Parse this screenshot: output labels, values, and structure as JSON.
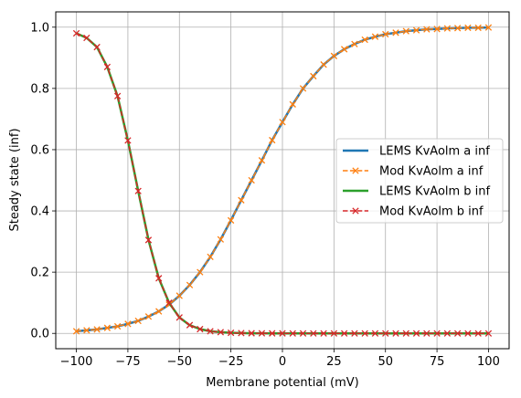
{
  "chart_data": {
    "type": "line",
    "xlabel": "Membrane potential (mV)",
    "ylabel": "Steady state (inf)",
    "xlim": [
      -110,
      110
    ],
    "ylim": [
      -0.05,
      1.05
    ],
    "xticks": [
      -100,
      -75,
      -50,
      -25,
      0,
      25,
      50,
      75,
      100
    ],
    "xtick_labels": [
      "−100",
      "−75",
      "−50",
      "−25",
      "0",
      "25",
      "50",
      "75",
      "100"
    ],
    "yticks": [
      0.0,
      0.2,
      0.4,
      0.6,
      0.8,
      1.0
    ],
    "ytick_labels": [
      "0.0",
      "0.2",
      "0.4",
      "0.6",
      "0.8",
      "1.0"
    ],
    "grid": true,
    "legend_position": "center-right",
    "x": [
      -100,
      -95,
      -90,
      -85,
      -80,
      -75,
      -70,
      -65,
      -60,
      -55,
      -50,
      -45,
      -40,
      -35,
      -30,
      -25,
      -20,
      -15,
      -10,
      -5,
      0,
      5,
      10,
      15,
      20,
      25,
      30,
      35,
      40,
      45,
      50,
      55,
      60,
      65,
      70,
      75,
      80,
      85,
      90,
      95,
      100
    ],
    "series": [
      {
        "name": "LEMS KvAolm a inf",
        "color": "#1f77b4",
        "style": "solid",
        "values": [
          0.007,
          0.01,
          0.013,
          0.018,
          0.023,
          0.031,
          0.041,
          0.055,
          0.072,
          0.094,
          0.123,
          0.158,
          0.2,
          0.25,
          0.307,
          0.369,
          0.435,
          0.5,
          0.565,
          0.631,
          0.69,
          0.748,
          0.8,
          0.84,
          0.878,
          0.906,
          0.928,
          0.945,
          0.959,
          0.969,
          0.977,
          0.982,
          0.987,
          0.99,
          0.993,
          0.994,
          0.996,
          0.997,
          0.998,
          0.998,
          0.999
        ]
      },
      {
        "name": "Mod KvAolm a inf",
        "color": "#ff7f0e",
        "style": "dashed-x",
        "values": [
          0.007,
          0.01,
          0.013,
          0.018,
          0.023,
          0.031,
          0.041,
          0.055,
          0.072,
          0.094,
          0.123,
          0.158,
          0.2,
          0.25,
          0.307,
          0.369,
          0.435,
          0.5,
          0.565,
          0.631,
          0.69,
          0.748,
          0.8,
          0.84,
          0.878,
          0.906,
          0.928,
          0.945,
          0.959,
          0.969,
          0.977,
          0.982,
          0.987,
          0.99,
          0.993,
          0.994,
          0.996,
          0.997,
          0.998,
          0.998,
          0.999
        ]
      },
      {
        "name": "LEMS KvAolm b inf",
        "color": "#2ca02c",
        "style": "solid",
        "values": [
          0.98,
          0.965,
          0.935,
          0.87,
          0.775,
          0.63,
          0.465,
          0.305,
          0.18,
          0.1,
          0.052,
          0.027,
          0.014,
          0.007,
          0.004,
          0.002,
          0.001,
          0.0005,
          0.0003,
          0.0001,
          0.0001,
          0,
          0,
          0,
          0,
          0,
          0,
          0,
          0,
          0,
          0,
          0,
          0,
          0,
          0,
          0,
          0,
          0,
          0,
          0,
          0
        ]
      },
      {
        "name": "Mod KvAolm b inf",
        "color": "#d62728",
        "style": "dashed-x",
        "values": [
          0.98,
          0.965,
          0.935,
          0.87,
          0.775,
          0.63,
          0.465,
          0.305,
          0.18,
          0.1,
          0.052,
          0.027,
          0.014,
          0.007,
          0.004,
          0.002,
          0.001,
          0.0005,
          0.0003,
          0.0001,
          0.0001,
          0,
          0,
          0,
          0,
          0,
          0,
          0,
          0,
          0,
          0,
          0,
          0,
          0,
          0,
          0,
          0,
          0,
          0,
          0,
          0
        ]
      }
    ]
  }
}
